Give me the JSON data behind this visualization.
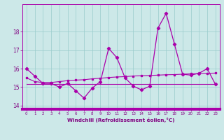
{
  "title": "",
  "xlabel": "Windchill (Refroidissement éolien,°C)",
  "x": [
    0,
    1,
    2,
    3,
    4,
    5,
    6,
    7,
    8,
    9,
    10,
    11,
    12,
    13,
    14,
    15,
    16,
    17,
    18,
    19,
    20,
    21,
    22,
    23
  ],
  "y_main": [
    16.0,
    15.6,
    15.2,
    15.2,
    15.0,
    15.2,
    14.8,
    14.4,
    14.95,
    15.3,
    17.1,
    16.6,
    15.5,
    15.05,
    14.85,
    15.05,
    18.2,
    19.0,
    17.35,
    15.7,
    15.65,
    15.75,
    16.0,
    15.15
  ],
  "y_avg": [
    15.5,
    15.3,
    15.25,
    15.25,
    15.3,
    15.35,
    15.38,
    15.4,
    15.45,
    15.48,
    15.52,
    15.55,
    15.57,
    15.6,
    15.62,
    15.63,
    15.65,
    15.67,
    15.68,
    15.7,
    15.72,
    15.73,
    15.75,
    15.76
  ],
  "y_flat": [
    15.18,
    15.18,
    15.18,
    15.18,
    15.18,
    15.18,
    15.18,
    15.18,
    15.18,
    15.18,
    15.18,
    15.18,
    15.18,
    15.18,
    15.18,
    15.18,
    15.18,
    15.18,
    15.18,
    15.18,
    15.18,
    15.18,
    15.18,
    15.18
  ],
  "line_color": "#aa00aa",
  "bg_color": "#cce8e8",
  "grid_color": "#99cccc",
  "axis_band_color": "#aa00aa",
  "ylim": [
    13.8,
    19.5
  ],
  "yticks": [
    14,
    15,
    16,
    17,
    18
  ],
  "xticks": [
    0,
    1,
    2,
    3,
    4,
    5,
    6,
    7,
    8,
    9,
    10,
    11,
    12,
    13,
    14,
    15,
    16,
    17,
    18,
    19,
    20,
    21,
    22,
    23
  ],
  "tick_color": "#800080",
  "xlabel_color": "#800080"
}
